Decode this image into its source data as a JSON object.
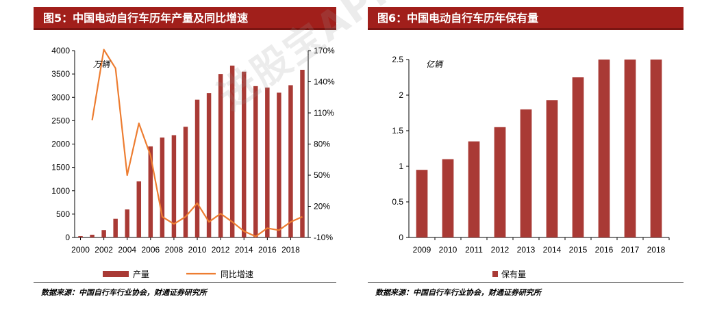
{
  "left_panel": {
    "title": "图5：中国电动自行车历年产量及同比增速",
    "source": "数据来源：中国自行车行业协会，财通证券研究所"
  },
  "right_panel": {
    "title": "图6：中国电动自行车历年保有量",
    "source": "数据来源：中国自行车行业协会，财通证券研究所"
  },
  "watermark": "进股宝APP",
  "colors": {
    "bar": "#a93a35",
    "line": "#ed7d31",
    "title_bg": "#a11f1b"
  },
  "chart_data": [
    {
      "type": "bar",
      "title": "图5：中国电动自行车历年产量及同比增速",
      "unit_label": "万辆",
      "categories": [
        "2000",
        "2001",
        "2002",
        "2003",
        "2004",
        "2005",
        "2006",
        "2007",
        "2008",
        "2009",
        "2010",
        "2011",
        "2012",
        "2013",
        "2014",
        "2015",
        "2016",
        "2017",
        "2018",
        "2019"
      ],
      "x_tick_labels": [
        "2000",
        "2002",
        "2004",
        "2006",
        "2008",
        "2010",
        "2012",
        "2014",
        "2016",
        "2018"
      ],
      "series": [
        {
          "name": "产量",
          "type": "bar",
          "axis": "left",
          "values": [
            29,
            58,
            158,
            400,
            600,
            1200,
            1950,
            2140,
            2190,
            2370,
            2950,
            3090,
            3500,
            3680,
            3550,
            3240,
            3210,
            3100,
            3260,
            3590
          ]
        },
        {
          "name": "同比增速",
          "type": "line",
          "axis": "right",
          "values": [
            null,
            103,
            171,
            153,
            50,
            100,
            69,
            10,
            3,
            10,
            23,
            5,
            13,
            5,
            -4,
            -9,
            -1,
            -3,
            5,
            10
          ]
        }
      ],
      "y_left": {
        "range": [
          0,
          4000
        ],
        "ticks": [
          "0",
          "500",
          "1000",
          "1500",
          "2000",
          "2500",
          "3000",
          "3500",
          "4000"
        ]
      },
      "y_right": {
        "range": [
          -10,
          170
        ],
        "ticks": [
          "-10%",
          "20%",
          "50%",
          "80%",
          "110%",
          "140%",
          "170%"
        ]
      },
      "legend": {
        "placement": "bottom",
        "items": [
          "产量",
          "同比增速"
        ]
      },
      "grid": false
    },
    {
      "type": "bar",
      "title": "图6：中国电动自行车历年保有量",
      "unit_label": "亿辆",
      "categories": [
        "2009",
        "2010",
        "2011",
        "2012",
        "2013",
        "2014",
        "2015",
        "2016",
        "2017",
        "2018"
      ],
      "series": [
        {
          "name": "保有量",
          "values": [
            0.95,
            1.1,
            1.35,
            1.55,
            1.8,
            1.93,
            2.25,
            2.5,
            2.5,
            2.5
          ]
        }
      ],
      "y": {
        "range": [
          0,
          2.5
        ],
        "ticks": [
          "0",
          "0.5",
          "1",
          "1.5",
          "2",
          "2.5"
        ]
      },
      "legend": {
        "placement": "bottom",
        "items": [
          "保有量"
        ]
      },
      "grid": false
    }
  ]
}
